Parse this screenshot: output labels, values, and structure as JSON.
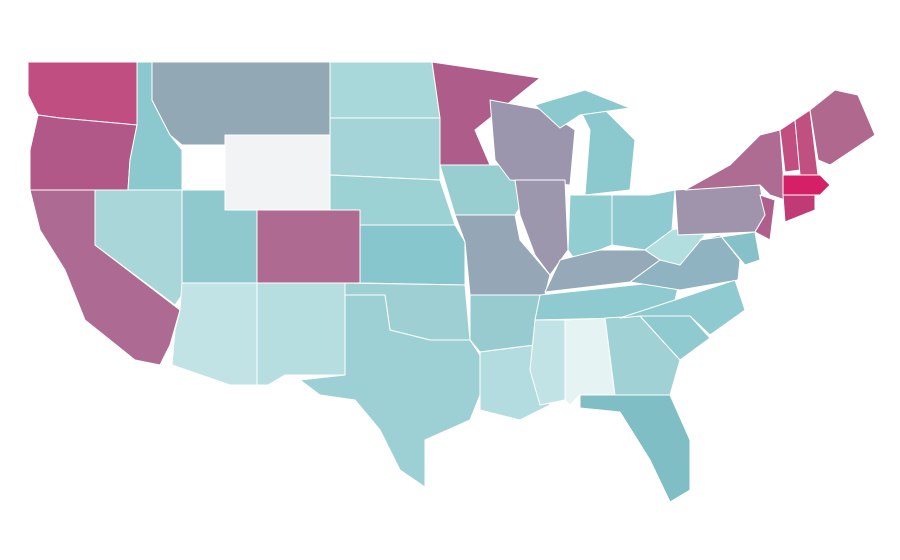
{
  "map": {
    "regions": [
      {
        "color": "#c04e80"
      },
      {
        "color": "#b25888"
      },
      {
        "color": "#8cc9cf"
      },
      {
        "color": "#93a8b5"
      },
      {
        "color": "#f2f3f5"
      },
      {
        "color": "#a9d8da"
      },
      {
        "color": "#a4d4d7"
      },
      {
        "color": "#9dd2d5"
      },
      {
        "color": "#ae5c8a"
      },
      {
        "color": "#99ced1"
      },
      {
        "color": "#9b96ad"
      },
      {
        "color": "#9d97ad"
      },
      {
        "color": "#8cc9cf"
      },
      {
        "color": "#8cc9cf"
      },
      {
        "color": "#92cdd2"
      },
      {
        "color": "#8ecacf"
      },
      {
        "color": "#ad6b93"
      },
      {
        "color": "#a8d6d9"
      },
      {
        "color": "#8fc9ce"
      },
      {
        "color": "#c1e3e5"
      },
      {
        "color": "#ae6a91"
      },
      {
        "color": "#b6dee1"
      },
      {
        "color": "#87c6cc"
      },
      {
        "color": "#9dcfd3"
      },
      {
        "color": "#9dd0d4"
      },
      {
        "color": "#95a7b7"
      },
      {
        "color": "#97cbd0"
      },
      {
        "color": "#b2dce0"
      },
      {
        "color": "#c2e3e5"
      },
      {
        "color": "#e6f3f3"
      },
      {
        "color": "#8ecacf"
      },
      {
        "color": "#95a9b9"
      },
      {
        "color": "#9fd1d5"
      },
      {
        "color": "#80bec5"
      },
      {
        "color": "#8ecacf"
      },
      {
        "color": "#8ecacf"
      },
      {
        "color": "#8fb3c0"
      },
      {
        "color": "#b2dee0"
      },
      {
        "color": "#a094ad"
      },
      {
        "color": "#ae6c92"
      },
      {
        "color": "#ae5f8c"
      },
      {
        "color": "#86c1c9"
      },
      {
        "color": "#c04e80"
      },
      {
        "color": "#c05080"
      },
      {
        "color": "#b0688e"
      },
      {
        "color": "#d51f66"
      },
      {
        "color": "#c03b76"
      }
    ]
  }
}
